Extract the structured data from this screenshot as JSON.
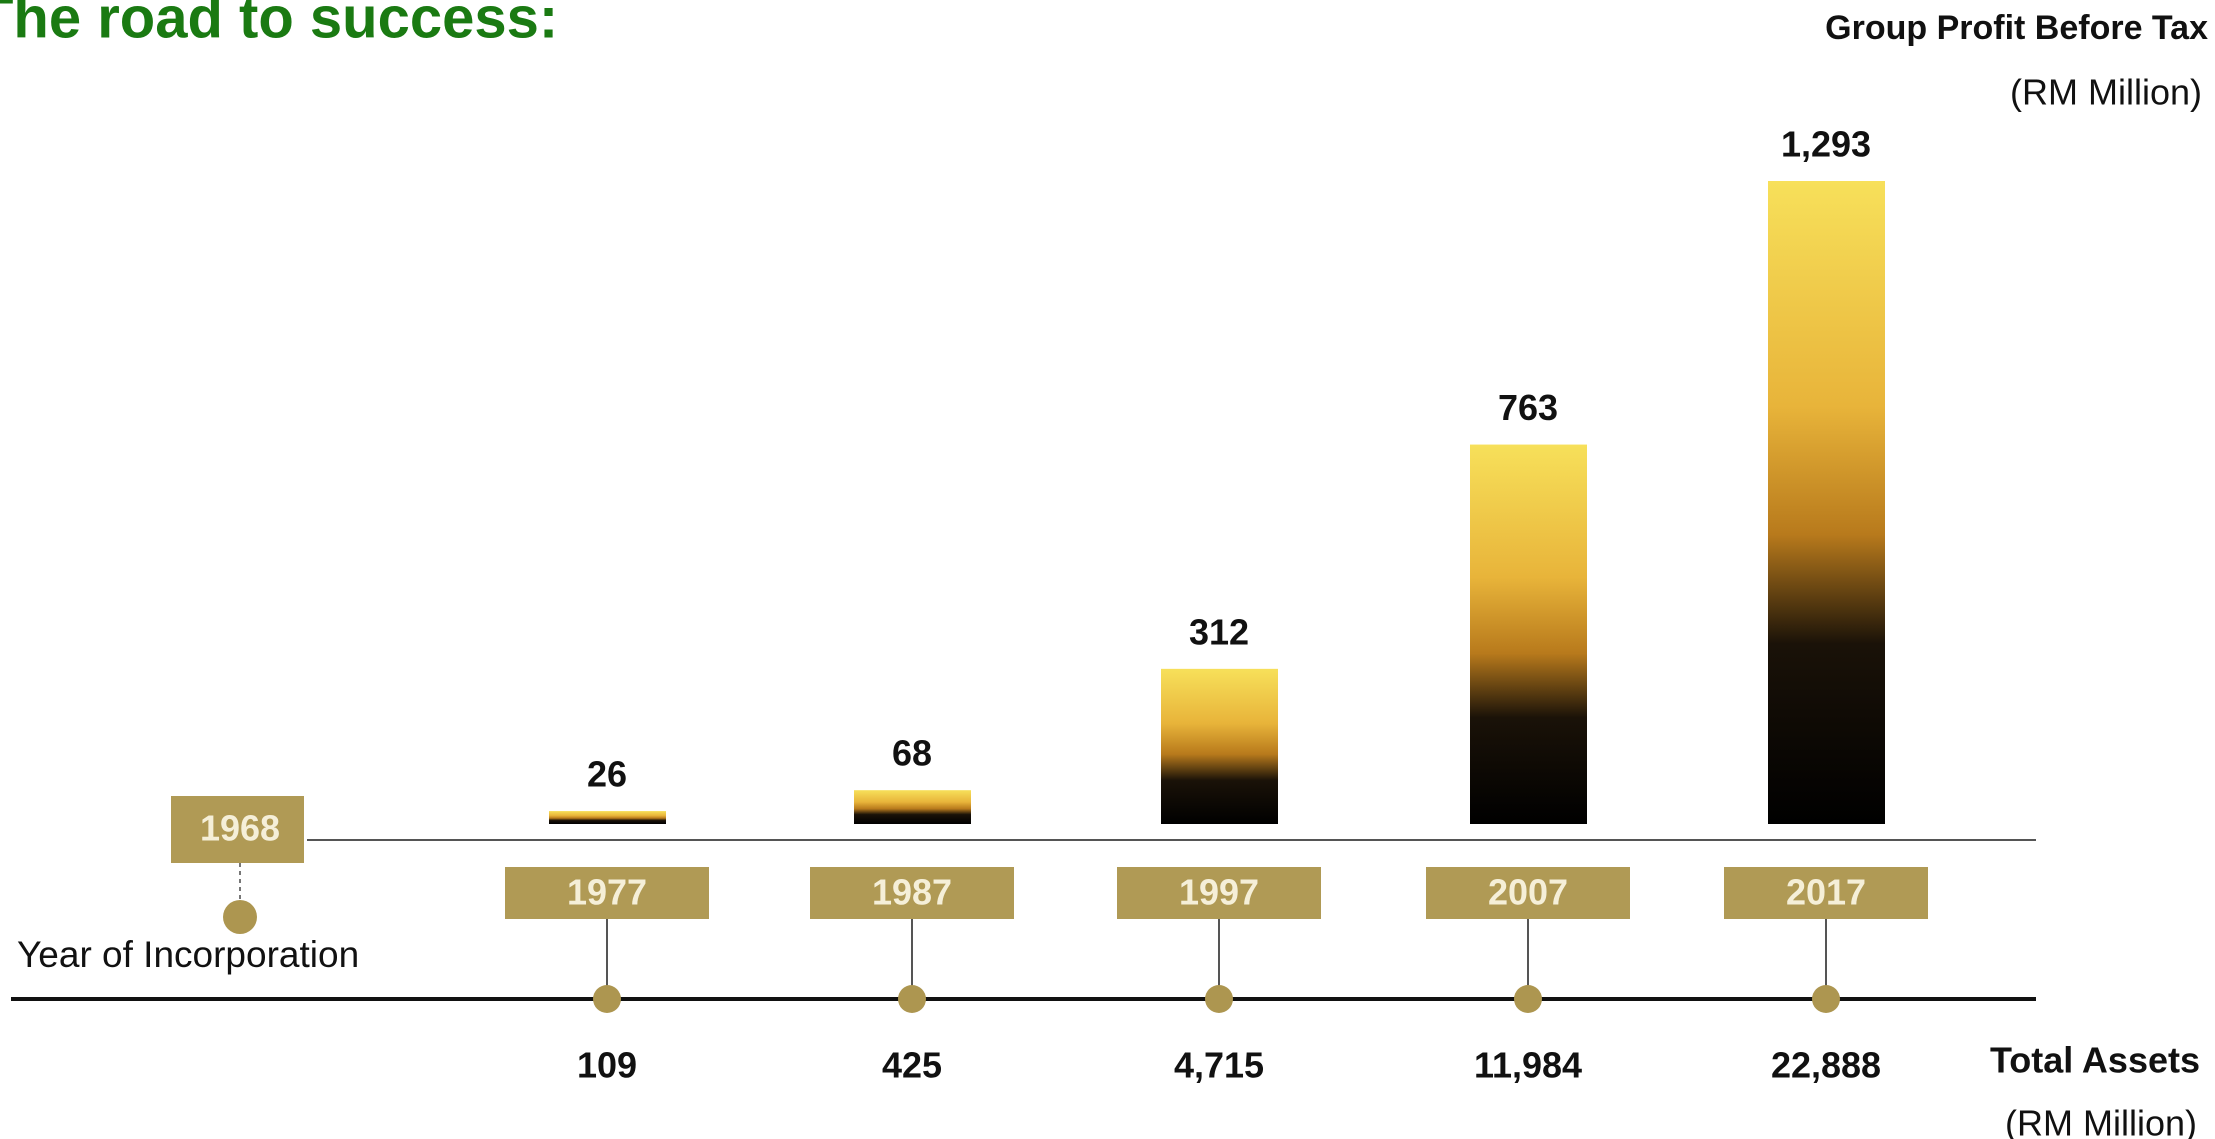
{
  "chart_data": {
    "type": "bar",
    "title": "The road to success:",
    "value_title": "Group Profit Before Tax",
    "value_unit": "(RM Million)",
    "categories": [
      "1977",
      "1987",
      "1997",
      "2007",
      "2017"
    ],
    "values": [
      26,
      68,
      312,
      763,
      1293
    ],
    "value_labels": [
      "26",
      "68",
      "312",
      "763",
      "1,293"
    ],
    "incorporation": {
      "year": "1968",
      "label": "Year of Incorporation"
    },
    "assets": {
      "title": "Total Assets",
      "unit": "(RM Million)",
      "values": [
        109,
        425,
        4715,
        11984,
        22888
      ],
      "value_labels": [
        "109",
        "425",
        "4,715",
        "11,984",
        "22,888"
      ]
    },
    "colors": {
      "title": "#1a7a12",
      "box": "#b09a55",
      "box_text": "#f5efd8",
      "dot": "#ad9650"
    }
  }
}
